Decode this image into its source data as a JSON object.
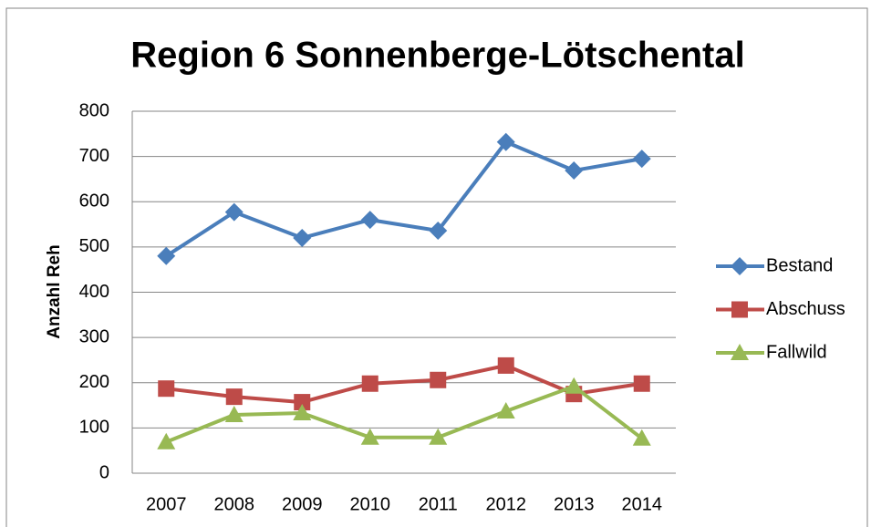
{
  "chart_data": {
    "type": "line",
    "title": "Region 6 Sonnenberge-Lötschental",
    "y_label": "Anzahl Reh",
    "categories": [
      "2007",
      "2008",
      "2009",
      "2010",
      "2011",
      "2012",
      "2013",
      "2014"
    ],
    "series": [
      {
        "name": "Bestand",
        "color": "#4a7ebb",
        "marker": "diamond",
        "values": [
          480,
          577,
          520,
          560,
          536,
          732,
          669,
          695
        ]
      },
      {
        "name": "Abschuss",
        "color": "#be4b48",
        "marker": "square",
        "values": [
          187,
          169,
          157,
          198,
          206,
          238,
          175,
          198
        ]
      },
      {
        "name": "Fallwild",
        "color": "#98b954",
        "marker": "triangle",
        "values": [
          69,
          129,
          133,
          79,
          79,
          137,
          192,
          77
        ]
      }
    ],
    "ylim": [
      0,
      800
    ],
    "yticks": [
      0,
      100,
      200,
      300,
      400,
      500,
      600,
      700,
      800
    ],
    "grid": true,
    "legend": "right"
  }
}
